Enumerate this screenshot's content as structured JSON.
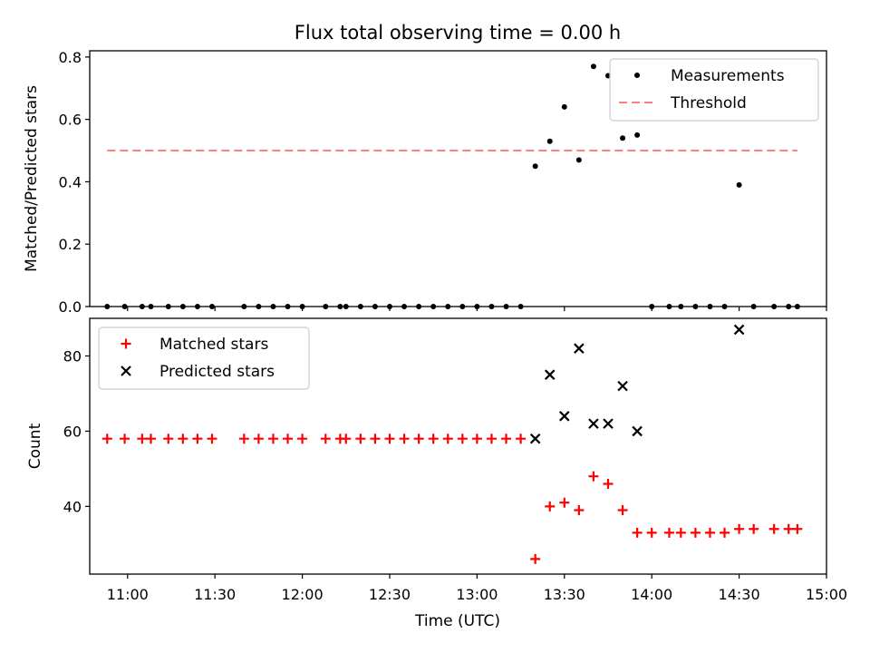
{
  "figure": {
    "title": "Flux total observing time = 0.00 h"
  },
  "chart_data": [
    {
      "type": "scatter",
      "ylabel": "Matched/Predicted stars",
      "xlim": [
        "10:47",
        "15:00"
      ],
      "ylim": [
        0,
        0.82
      ],
      "yticks": [
        0.0,
        0.2,
        0.4,
        0.6,
        0.8
      ],
      "ytick_labels": [
        "0.0",
        "0.2",
        "0.4",
        "0.6",
        "0.8"
      ],
      "legend_position": "top-right",
      "series": [
        {
          "name": "Measurements",
          "marker": "dot",
          "color": "#000000",
          "x": [
            "10:53",
            "10:59",
            "11:05",
            "11:08",
            "11:14",
            "11:19",
            "11:24",
            "11:29",
            "11:40",
            "11:45",
            "11:50",
            "11:55",
            "12:00",
            "12:08",
            "12:13",
            "12:15",
            "12:20",
            "12:25",
            "12:30",
            "12:35",
            "12:40",
            "12:45",
            "12:50",
            "12:55",
            "13:00",
            "13:05",
            "13:10",
            "13:15",
            "13:20",
            "13:25",
            "13:30",
            "13:35",
            "13:40",
            "13:45",
            "13:50",
            "13:55",
            "14:00",
            "14:06",
            "14:10",
            "14:15",
            "14:20",
            "14:25",
            "14:30",
            "14:35",
            "14:42",
            "14:47",
            "14:50"
          ],
          "y": [
            0,
            0,
            0,
            0,
            0,
            0,
            0,
            0,
            0,
            0,
            0,
            0,
            0,
            0,
            0,
            0,
            0,
            0,
            0,
            0,
            0,
            0,
            0,
            0,
            0,
            0,
            0,
            0,
            0.45,
            0.53,
            0.64,
            0.47,
            0.77,
            0.74,
            0.54,
            0.55,
            0,
            0,
            0,
            0,
            0,
            0,
            0.39,
            0,
            0,
            0,
            0
          ]
        },
        {
          "name": "Threshold",
          "marker": "dashed-line",
          "color": "#ff7f7f",
          "x": [
            "10:53",
            "14:50"
          ],
          "y": [
            0.5,
            0.5
          ]
        }
      ]
    },
    {
      "type": "scatter",
      "ylabel": "Count",
      "xlabel": "Time (UTC)",
      "xlim": [
        "10:47",
        "15:00"
      ],
      "ylim": [
        22,
        90
      ],
      "yticks": [
        40,
        60,
        80
      ],
      "ytick_labels": [
        "40",
        "60",
        "80"
      ],
      "xticks": [
        "11:00",
        "11:30",
        "12:00",
        "12:30",
        "13:00",
        "13:30",
        "14:00",
        "14:30",
        "15:00"
      ],
      "xtick_labels": [
        "11:00",
        "11:30",
        "12:00",
        "12:30",
        "13:00",
        "13:30",
        "14:00",
        "14:30",
        "15:00"
      ],
      "legend_position": "top-left",
      "series": [
        {
          "name": "Matched stars",
          "marker": "plus",
          "color": "#ff0000",
          "x": [
            "10:53",
            "10:59",
            "11:05",
            "11:08",
            "11:14",
            "11:19",
            "11:24",
            "11:29",
            "11:40",
            "11:45",
            "11:50",
            "11:55",
            "12:00",
            "12:08",
            "12:13",
            "12:15",
            "12:20",
            "12:25",
            "12:30",
            "12:35",
            "12:40",
            "12:45",
            "12:50",
            "12:55",
            "13:00",
            "13:05",
            "13:10",
            "13:15",
            "13:20",
            "13:25",
            "13:30",
            "13:35",
            "13:40",
            "13:45",
            "13:50",
            "13:55",
            "14:00",
            "14:06",
            "14:10",
            "14:15",
            "14:20",
            "14:25",
            "14:30",
            "14:35",
            "14:42",
            "14:47",
            "14:50"
          ],
          "y": [
            58,
            58,
            58,
            58,
            58,
            58,
            58,
            58,
            58,
            58,
            58,
            58,
            58,
            58,
            58,
            58,
            58,
            58,
            58,
            58,
            58,
            58,
            58,
            58,
            58,
            58,
            58,
            58,
            26,
            40,
            41,
            39,
            48,
            46,
            39,
            33,
            33,
            33,
            33,
            33,
            33,
            33,
            34,
            34,
            34,
            34,
            34
          ]
        },
        {
          "name": "Predicted stars",
          "marker": "x",
          "color": "#000000",
          "x": [
            "13:20",
            "13:25",
            "13:30",
            "13:35",
            "13:40",
            "13:45",
            "13:50",
            "13:55",
            "14:30"
          ],
          "y": [
            58,
            75,
            64,
            82,
            62,
            62,
            72,
            60,
            87
          ]
        }
      ]
    }
  ]
}
